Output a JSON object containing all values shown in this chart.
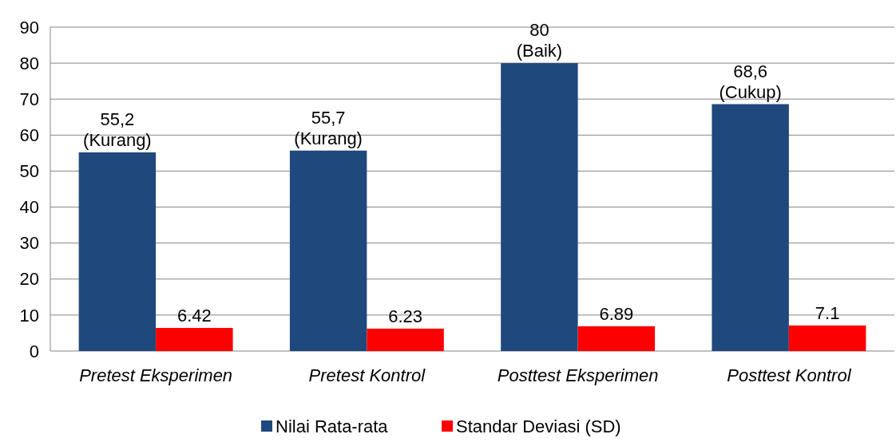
{
  "chart_data": {
    "type": "bar",
    "categories": [
      "Pretest Eksperimen",
      "Pretest Kontrol",
      "Posttest Eksperimen",
      "Posttest Kontrol"
    ],
    "series": [
      {
        "name": "Nilai Rata-rata",
        "color": "#1f497d",
        "values": [
          55.2,
          55.7,
          80,
          68.6
        ],
        "value_labels": [
          "55,2\n(Kurang)",
          "55,7\n(Kurang)",
          "80\n(Baik)",
          "68,6\n(Cukup)"
        ]
      },
      {
        "name": "Standar Deviasi (SD)",
        "color": "#ff0000",
        "values": [
          6.42,
          6.23,
          6.89,
          7.1
        ],
        "value_labels": [
          "6.42",
          "6.23",
          "6.89",
          "7.1"
        ]
      }
    ],
    "ylim": [
      0,
      90
    ],
    "yticks": [
      0,
      10,
      20,
      30,
      40,
      50,
      60,
      70,
      80,
      90
    ],
    "grid": "y",
    "legend": "bottom"
  }
}
